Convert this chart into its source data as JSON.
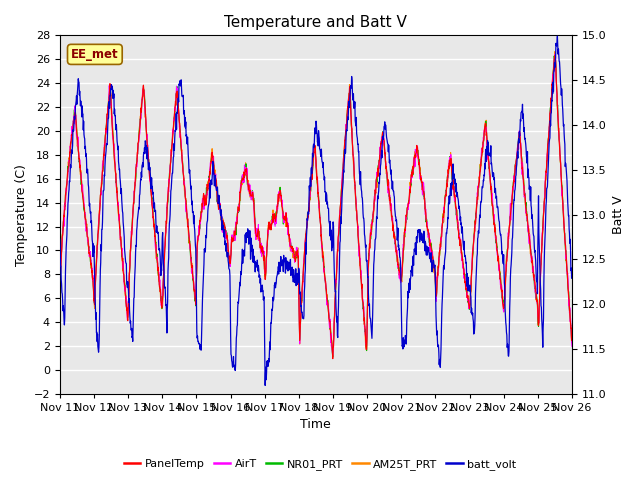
{
  "title": "Temperature and Batt V",
  "xlabel": "Time",
  "ylabel_left": "Temperature (C)",
  "ylabel_right": "Batt V",
  "annotation": "EE_met",
  "ylim_left": [
    -2,
    28
  ],
  "ylim_right": [
    11.0,
    15.0
  ],
  "yticks_left": [
    -2,
    0,
    2,
    4,
    6,
    8,
    10,
    12,
    14,
    16,
    18,
    20,
    22,
    24,
    26,
    28
  ],
  "yticks_right": [
    11.0,
    11.5,
    12.0,
    12.5,
    13.0,
    13.5,
    14.0,
    14.5,
    15.0
  ],
  "xtick_labels": [
    "Nov 11",
    "Nov 12",
    "Nov 13",
    "Nov 14",
    "Nov 15",
    "Nov 16",
    "Nov 17",
    "Nov 18",
    "Nov 19",
    "Nov 20",
    "Nov 21",
    "Nov 22",
    "Nov 23",
    "Nov 24",
    "Nov 25",
    "Nov 26"
  ],
  "n_days": 15,
  "colors": {
    "PanelTemp": "#FF0000",
    "AirT": "#FF00FF",
    "NR01_PRT": "#00BB00",
    "AM25T_PRT": "#FF8800",
    "batt_volt": "#0000CC"
  },
  "legend_labels": [
    "PanelTemp",
    "AirT",
    "NR01_PRT",
    "AM25T_PRT",
    "batt_volt"
  ],
  "background_color": "#ffffff",
  "plot_bg_color": "#e8e8e8",
  "grid_color": "#ffffff",
  "title_fontsize": 11,
  "axis_fontsize": 9,
  "tick_fontsize": 8
}
